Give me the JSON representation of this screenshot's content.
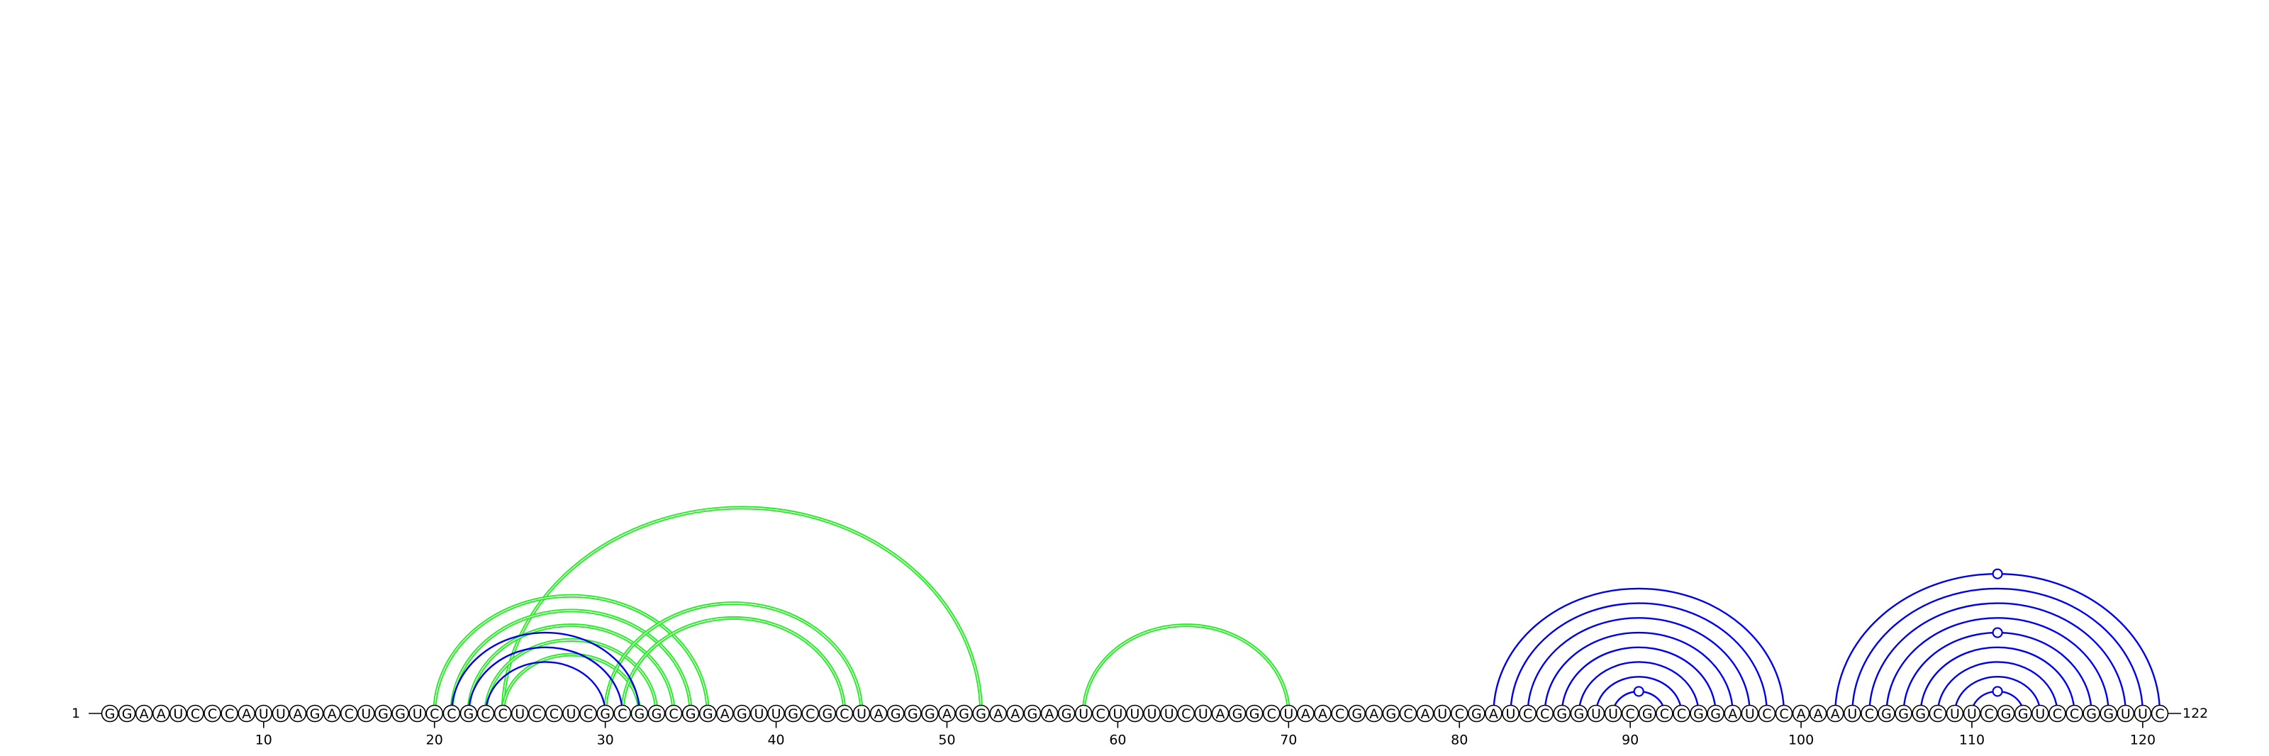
{
  "sequence": "GGAAUCCCAUUAGACUGGUCCGCCUCCUCGCGGCGGAGUUGCGCUAGGGAGGAAGAGUCUUUUCUAGGCUAACGAGCAUCGAUCCGGUUCGCCGGAUCCAAAUCGGGCUUCGGUCCGGUUC",
  "start_label": "1",
  "end_label": "122",
  "ticks": [
    10,
    20,
    30,
    40,
    50,
    60,
    70,
    80,
    90,
    100,
    110,
    120
  ],
  "colors": {
    "green": "#22ee22",
    "blue": "#0000ee"
  },
  "arcs": [
    {
      "i": 24,
      "j": 52,
      "color": "green"
    },
    {
      "i": 20,
      "j": 36,
      "color": "green"
    },
    {
      "i": 21,
      "j": 35,
      "color": "green"
    },
    {
      "i": 22,
      "j": 34,
      "color": "green"
    },
    {
      "i": 23,
      "j": 33,
      "color": "green"
    },
    {
      "i": 24,
      "j": 32,
      "color": "green"
    },
    {
      "i": 30,
      "j": 45,
      "color": "green"
    },
    {
      "i": 31,
      "j": 44,
      "color": "green"
    },
    {
      "i": 58,
      "j": 70,
      "color": "green"
    },
    {
      "i": 21,
      "j": 32,
      "color": "blue"
    },
    {
      "i": 22,
      "j": 31,
      "color": "blue"
    },
    {
      "i": 23,
      "j": 30,
      "color": "blue"
    },
    {
      "i": 82,
      "j": 99,
      "color": "blue"
    },
    {
      "i": 83,
      "j": 98,
      "color": "blue"
    },
    {
      "i": 84,
      "j": 97,
      "color": "blue"
    },
    {
      "i": 85,
      "j": 96,
      "color": "blue"
    },
    {
      "i": 86,
      "j": 95,
      "color": "blue"
    },
    {
      "i": 87,
      "j": 94,
      "color": "blue"
    },
    {
      "i": 88,
      "j": 93,
      "color": "blue"
    },
    {
      "i": 89,
      "j": 92,
      "color": "blue"
    },
    {
      "i": 102,
      "j": 121,
      "color": "blue"
    },
    {
      "i": 103,
      "j": 120,
      "color": "blue"
    },
    {
      "i": 104,
      "j": 119,
      "color": "blue"
    },
    {
      "i": 105,
      "j": 118,
      "color": "blue"
    },
    {
      "i": 106,
      "j": 117,
      "color": "blue"
    },
    {
      "i": 107,
      "j": 116,
      "color": "blue"
    },
    {
      "i": 108,
      "j": 115,
      "color": "blue"
    },
    {
      "i": 109,
      "j": 114,
      "color": "blue"
    },
    {
      "i": 110,
      "j": 113,
      "color": "blue"
    }
  ],
  "loop_markers": [
    {
      "i": 89,
      "j": 92,
      "color": "blue"
    },
    {
      "i": 102,
      "j": 121,
      "color": "blue"
    },
    {
      "i": 106,
      "j": 117,
      "color": "blue"
    },
    {
      "i": 110,
      "j": 113,
      "color": "blue"
    }
  ]
}
